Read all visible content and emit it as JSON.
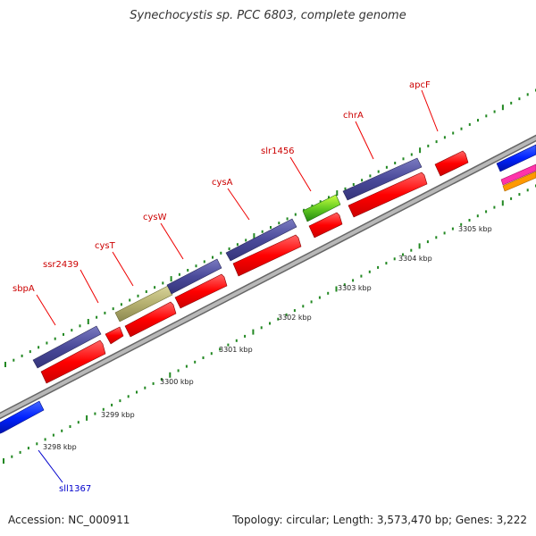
{
  "title": "Synechocystis sp. PCC 6803, complete genome",
  "footer": {
    "accession": "Accession: NC_000911",
    "summary": "Topology: circular; Length: 3,573,470 bp; Genes: 3,222"
  },
  "colors": {
    "label_top": "#cc0000",
    "label_bottom": "#0000cc",
    "backbone": "#999999",
    "tick": "#228822",
    "gene_red": "#ff0000",
    "gene_navy": "#4a4a9a",
    "gene_khaki": "#b5b070",
    "gene_green": "#66cc22",
    "gene_blue": "#0022ff",
    "gene_magenta": "#ff33aa",
    "gene_orange": "#ff9900"
  },
  "scale_labels": [
    "3298 kbp",
    "3299 kbp",
    "3300 kbp",
    "3301 kbp",
    "3302 kbp",
    "3303 kbp",
    "3304 kbp",
    "3305 kbp"
  ],
  "gene_labels": [
    {
      "name": "sbpA",
      "side": "top"
    },
    {
      "name": "ssr2439",
      "side": "top"
    },
    {
      "name": "cysT",
      "side": "top"
    },
    {
      "name": "cysW",
      "side": "top"
    },
    {
      "name": "cysA",
      "side": "top"
    },
    {
      "name": "slr1456",
      "side": "top"
    },
    {
      "name": "chrA",
      "side": "top"
    },
    {
      "name": "apcF",
      "side": "top"
    },
    {
      "name": "sll1367",
      "side": "bottom"
    }
  ]
}
